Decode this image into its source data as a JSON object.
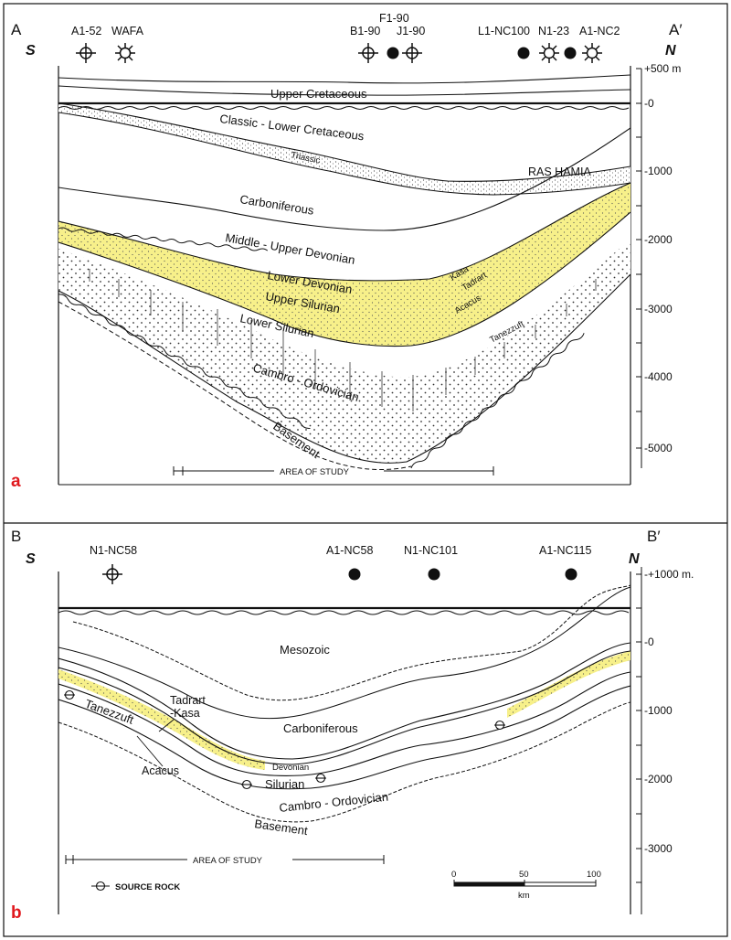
{
  "colors": {
    "yellow_fill": "#f7f08a",
    "panel_letter": "#e0191e",
    "line": "#111111"
  },
  "panel_a": {
    "letter": "a",
    "start_label": "A",
    "end_label": "A′",
    "south": "S",
    "north": "N",
    "wells": [
      {
        "name": "A1-52",
        "icon": "dry-well-icon"
      },
      {
        "name": "WAFA",
        "icon": "gas-well-icon"
      },
      {
        "name": "B1-90",
        "icon": "dry-well-icon"
      },
      {
        "name": "F1-90",
        "icon": "oil-well-icon"
      },
      {
        "name": "J1-90",
        "icon": "dry-well-icon"
      },
      {
        "name": "L1-NC100",
        "icon": "oil-well-icon"
      },
      {
        "name": "N1-23",
        "icon": "gas-well-icon"
      },
      {
        "name": "A1-NC2",
        "icon": "gas-well-icon"
      }
    ],
    "formations": {
      "upper_cretaceous": "Upper  Cretaceous",
      "classic_lower_cretaceous": "Classic - Lower  Cretaceous",
      "triassic": "Triassic",
      "ras_hamia": "RAS   HAMIA",
      "carboniferous": "Carboniferous",
      "middle_upper_devonian": "Middle - Upper  Devonian",
      "lower_devonian": "Lower  Devonian",
      "upper_silurian": "Upper  Silurian",
      "lower_silurian": "Lower  Silurian",
      "kasa": "Kasa",
      "tadrart": "Tadrart",
      "acacus": "Acacus",
      "tanezzuft": "Tanezzuft",
      "cambro_ordovician": "Cambro - Ordovician",
      "basement": "Basement"
    },
    "depth_ticks": [
      "+500 m",
      "-0",
      "-1000",
      "-2000",
      "-3000",
      "-4000",
      "-5000"
    ],
    "area_label": "AREA   OF   STUDY"
  },
  "panel_b": {
    "letter": "b",
    "start_label": "B",
    "end_label": "B′",
    "south": "S",
    "north": "N",
    "wells": [
      {
        "name": "N1-NC58",
        "icon": "dry-well-icon"
      },
      {
        "name": "A1-NC58",
        "icon": "oil-well-icon"
      },
      {
        "name": "N1-NC101",
        "icon": "oil-well-icon"
      },
      {
        "name": "A1-NC115",
        "icon": "oil-well-icon"
      }
    ],
    "formations": {
      "mesozoic": "Mesozoic",
      "carboniferous": "Carboniferous",
      "tadrart": "Tadrart",
      "kasa": "-Kasa",
      "tanezzuft": "Tanezzuft",
      "acacus": "Acacus",
      "devonian": "Devonian",
      "silurian": "Silurian",
      "cambro_ordovician": "Cambro  - Ordovician",
      "basement": "Basement"
    },
    "depth_ticks": [
      "-+1000 m.",
      "-0",
      "-1000",
      "-2000",
      "-3000"
    ],
    "area_label": "AREA   OF   STUDY",
    "legend_label": "SOURCE ROCK",
    "scale": {
      "ticks": [
        "0",
        "50",
        "100"
      ],
      "unit": "km"
    }
  }
}
